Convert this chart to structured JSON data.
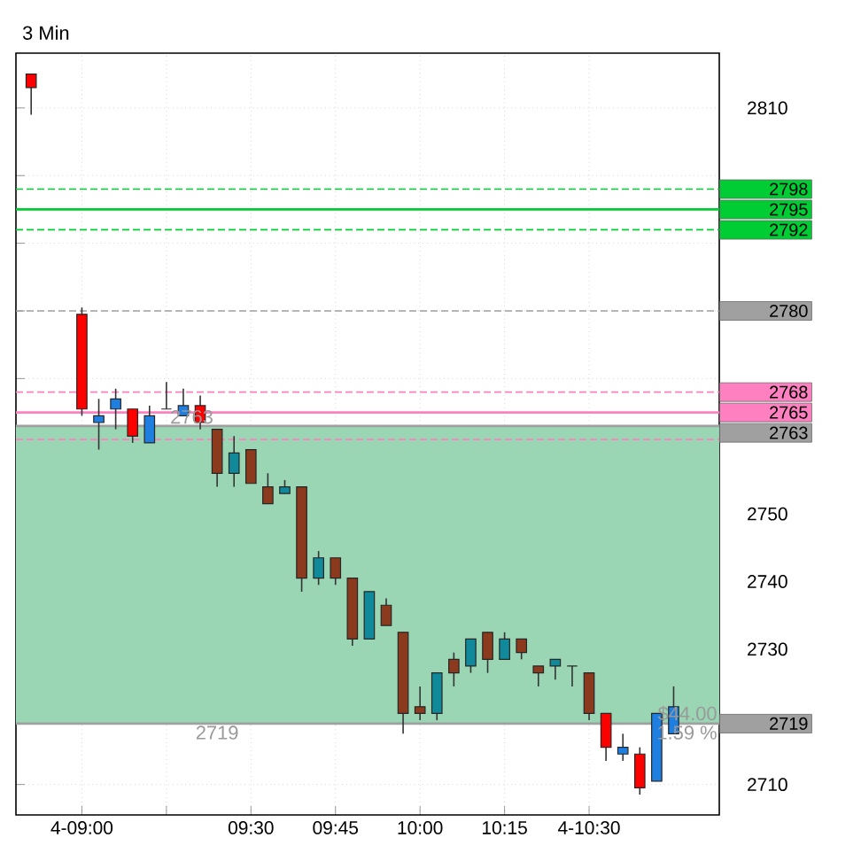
{
  "chart_data": {
    "type": "candlestick",
    "title": "3 Min",
    "x": [
      8.85,
      9,
      9.05,
      9.1,
      9.15,
      9.2,
      9.25,
      9.3,
      9.35,
      9.4,
      9.45,
      9.5,
      9.55,
      9.6,
      9.65,
      9.7,
      9.75,
      9.8,
      9.85,
      9.9,
      9.95,
      10,
      10.05,
      10.1,
      10.15,
      10.2,
      10.25,
      10.3,
      10.35,
      10.4,
      10.45,
      10.5,
      10.55,
      10.6,
      10.65,
      10.7,
      10.75
    ],
    "ohlc": [
      [
        2815,
        2815,
        2809,
        2813
      ],
      [
        2779.5,
        2780.5,
        2764.5,
        2765.5
      ],
      [
        2763.5,
        2767,
        2759.5,
        2764.5
      ],
      [
        2765.5,
        2768.5,
        2762.5,
        2767
      ],
      [
        2765.5,
        2765.5,
        2760.5,
        2761.5
      ],
      [
        2760.5,
        2766,
        2760.5,
        2764.5
      ],
      [
        2765.5,
        2769.5,
        2765.5,
        2765.5
      ],
      [
        2764.5,
        2768.5,
        2764.5,
        2766
      ],
      [
        2766,
        2767.5,
        2762.5,
        2763.5
      ],
      [
        2762.5,
        2762.5,
        2754,
        2756
      ],
      [
        2756,
        2761.5,
        2754,
        2759
      ],
      [
        2759.5,
        2759.5,
        2754.5,
        2754.5
      ],
      [
        2754,
        2756,
        2751.5,
        2751.5
      ],
      [
        2753,
        2755,
        2753,
        2754
      ],
      [
        2754,
        2754,
        2738.5,
        2740.5
      ],
      [
        2740.5,
        2744.5,
        2739.5,
        2743.5
      ],
      [
        2743.5,
        2743.5,
        2739.5,
        2740.5
      ],
      [
        2740.5,
        2740.5,
        2730.5,
        2731.5
      ],
      [
        2731.5,
        2738.5,
        2731.5,
        2738.5
      ],
      [
        2736.5,
        2737.5,
        2733.5,
        2733.5
      ],
      [
        2732.5,
        2732.5,
        2717.5,
        2720.5
      ],
      [
        2721.5,
        2724.5,
        2719.5,
        2720.5
      ],
      [
        2720.5,
        2726.5,
        2719.5,
        2726.5
      ],
      [
        2728.5,
        2729.5,
        2724.5,
        2726.5
      ],
      [
        2727.5,
        2731.5,
        2726.5,
        2731.5
      ],
      [
        2732.5,
        2732.5,
        2726.5,
        2728.5
      ],
      [
        2728.5,
        2732.5,
        2728.5,
        2731.5
      ],
      [
        2731.5,
        2731.5,
        2728.5,
        2729.5
      ],
      [
        2727.5,
        2727.5,
        2724.5,
        2726.5
      ],
      [
        2727.5,
        2728.5,
        2725.5,
        2728.5
      ],
      [
        2727.5,
        2727.5,
        2724.5,
        2727.5
      ],
      [
        2726.5,
        2726.5,
        2719.5,
        2720.5
      ],
      [
        2720.5,
        2720.5,
        2713.5,
        2715.5
      ],
      [
        2714.5,
        2717.5,
        2713.5,
        2715.5
      ],
      [
        2714.5,
        2715.5,
        2708.5,
        2709.5
      ],
      [
        2710.5,
        2720.5,
        2710.5,
        2720.5
      ],
      [
        2717.5,
        2724.5,
        2717.5,
        2721.5
      ]
    ],
    "colors": [
      "#ff0000",
      "#ff0000",
      "#1e7fe0",
      "#1e7fe0",
      "#ff0000",
      "#1e7fe0",
      "#262626",
      "#1e7fe0",
      "#ff0000",
      "#8b3a1e",
      "#108a9a",
      "#8b3a1e",
      "#8b3a1e",
      "#108a9a",
      "#8b3a1e",
      "#108a9a",
      "#8b3a1e",
      "#8b3a1e",
      "#108a9a",
      "#8b3a1e",
      "#8b3a1e",
      "#8b3a1e",
      "#108a9a",
      "#8b3a1e",
      "#108a9a",
      "#8b3a1e",
      "#108a9a",
      "#8b3a1e",
      "#8b3a1e",
      "#108a9a",
      "#262626",
      "#8b3a1e",
      "#ff0000",
      "#1e7fe0",
      "#ff0000",
      "#1e7fe0",
      "#1e7fe0"
    ],
    "xlim": [
      8.805,
      10.885
    ],
    "ylim": [
      2705.5,
      2818.1
    ],
    "xticks": [
      {
        "value": 9,
        "label": "4-09:00"
      },
      {
        "value": 9.25,
        "label": null
      },
      {
        "value": 9.5,
        "label": "09:30"
      },
      {
        "value": 9.75,
        "label": "09:45"
      },
      {
        "value": 10,
        "label": "10:00"
      },
      {
        "value": 10.25,
        "label": "10:15"
      },
      {
        "value": 10.5,
        "label": "4-10:30"
      }
    ],
    "yticks": [
      2710,
      {
        "value": 2720,
        "label": null
      },
      2730,
      2740,
      2750,
      {
        "value": 2760,
        "label": null
      },
      {
        "value": 2770,
        "label": null
      },
      {
        "value": 2780,
        "label": null
      },
      {
        "value": 2790,
        "label": null
      },
      {
        "value": 2800,
        "label": null
      },
      2810
    ],
    "grid": true,
    "bands": [
      {
        "axis": "y",
        "from": 2719,
        "to": 2763,
        "color": "#9ad6b4"
      }
    ],
    "ref_lines": [
      {
        "axis": "y",
        "value": 2798,
        "label": "2798",
        "color": "#00cc33",
        "line_style": "dashed"
      },
      {
        "axis": "y",
        "value": 2795,
        "label": "2795",
        "color": "#00cc33",
        "line_style": "solid"
      },
      {
        "axis": "y",
        "value": 2792,
        "label": "2792",
        "color": "#00cc33",
        "line_style": "dashed"
      },
      {
        "axis": "y",
        "value": 2780,
        "label": "2780",
        "color": "#a0a0a0",
        "line_style": "dashed"
      },
      {
        "axis": "y",
        "value": 2768,
        "label": "2768",
        "color": "#ff80c0",
        "line_style": "dashed"
      },
      {
        "axis": "y",
        "value": 2765,
        "label": "2765",
        "color": "#ff80c0",
        "line_style": "solid"
      },
      {
        "axis": "y",
        "value": 2763,
        "label": "2763",
        "color": "#a0a0a0",
        "line_style": "solid"
      },
      {
        "axis": "y",
        "value": 2761,
        "color": "#ff80c0",
        "line_style": "dashed"
      },
      {
        "axis": "y",
        "value": 2719,
        "label": "2719",
        "color": "#a0a0a0",
        "line_style": "solid"
      }
    ],
    "annotations": [
      {
        "text": "2763",
        "x": 9.325,
        "y": 2763
      },
      {
        "text": "2719",
        "x": 9.4,
        "y": 2719
      },
      "$44.00",
      "1.59 %"
    ]
  }
}
